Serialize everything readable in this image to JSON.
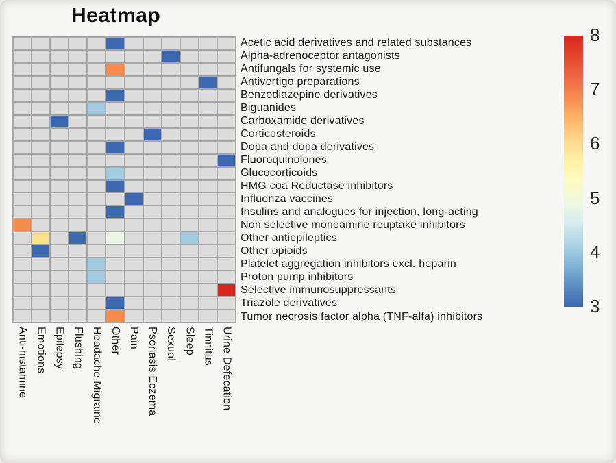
{
  "page": {
    "background": "#f6f6f4"
  },
  "chart_data": {
    "type": "heatmap",
    "title": "Heatmap",
    "rows": [
      "Acetic acid derivatives and related substances",
      "Alpha-adrenoceptor antagonists",
      "Antifungals for systemic use",
      "Antivertigo preparations",
      "Benzodiazepine derivatives",
      "Biguanides",
      "Carboxamide derivatives",
      "Corticosteroids",
      "Dopa and dopa derivatives",
      "Fluoroquinolones",
      "Glucocorticoids",
      "HMG coa Reductase inhibitors",
      "Influenza vaccines",
      "Insulins and analogues for injection, long-acting",
      "Non selective monoamine reuptake inhibitors",
      "Other antiepileptics",
      "Other opioids",
      "Platelet aggregation inhibitors excl. heparin",
      "Proton pump inhibitors",
      "Selective immunosuppressants",
      "Triazole derivatives",
      "Tumor necrosis factor alpha (TNF-alfa) inhibitors"
    ],
    "columns": [
      "Anti-histamine",
      "Emotions",
      "Epilepsy",
      "Flushing",
      "Headache Migraine",
      "Other",
      "Pain",
      "Psoriasis Eczema",
      "Sexual",
      "Sleep",
      "Tinnitus",
      "Urine Defecation"
    ],
    "cells": [
      {
        "row": "Acetic acid derivatives and related substances",
        "col": "Other",
        "value": 3
      },
      {
        "row": "Alpha-adrenoceptor antagonists",
        "col": "Sexual",
        "value": 3
      },
      {
        "row": "Antifungals for systemic use",
        "col": "Other",
        "value": 7
      },
      {
        "row": "Antivertigo preparations",
        "col": "Tinnitus",
        "value": 3
      },
      {
        "row": "Benzodiazepine derivatives",
        "col": "Other",
        "value": 3
      },
      {
        "row": "Biguanides",
        "col": "Headache Migraine",
        "value": 4
      },
      {
        "row": "Carboxamide derivatives",
        "col": "Epilepsy",
        "value": 3
      },
      {
        "row": "Corticosteroids",
        "col": "Psoriasis Eczema",
        "value": 3
      },
      {
        "row": "Dopa and dopa derivatives",
        "col": "Other",
        "value": 3
      },
      {
        "row": "Fluoroquinolones",
        "col": "Urine Defecation",
        "value": 3
      },
      {
        "row": "Glucocorticoids",
        "col": "Other",
        "value": 4
      },
      {
        "row": "HMG coa Reductase inhibitors",
        "col": "Other",
        "value": 3
      },
      {
        "row": "Influenza vaccines",
        "col": "Pain",
        "value": 3
      },
      {
        "row": "Insulins and analogues for injection, long-acting",
        "col": "Other",
        "value": 3
      },
      {
        "row": "Non selective monoamine reuptake inhibitors",
        "col": "Anti-histamine",
        "value": 7
      },
      {
        "row": "Other antiepileptics",
        "col": "Emotions",
        "value": 6
      },
      {
        "row": "Other antiepileptics",
        "col": "Flushing",
        "value": 3
      },
      {
        "row": "Other antiepileptics",
        "col": "Other",
        "value": 5
      },
      {
        "row": "Other antiepileptics",
        "col": "Sleep",
        "value": 4
      },
      {
        "row": "Other opioids",
        "col": "Emotions",
        "value": 3
      },
      {
        "row": "Platelet aggregation inhibitors excl. heparin",
        "col": "Headache Migraine",
        "value": 4
      },
      {
        "row": "Proton pump inhibitors",
        "col": "Headache Migraine",
        "value": 4
      },
      {
        "row": "Selective immunosuppressants",
        "col": "Urine Defecation",
        "value": 8
      },
      {
        "row": "Triazole derivatives",
        "col": "Other",
        "value": 3
      },
      {
        "row": "Tumor necrosis factor alpha (TNF-alfa) inhibitors",
        "col": "Other",
        "value": 7
      }
    ],
    "value_palette": {
      "3": "#3c68b0",
      "4": "#a3cbe2",
      "5": "#ebf5e4",
      "6": "#fbe288",
      "7": "#f68c4c",
      "8": "#d6271f"
    },
    "empty_cell_color": "#dcdcdc",
    "gridline_color": "#a6a6a6",
    "colorbar": {
      "min": 3,
      "max": 8,
      "ticks": [
        8,
        7,
        6,
        5,
        4,
        3
      ],
      "gradient_top_to_bottom": [
        "#d7261f",
        "#e4472e",
        "#f06744",
        "#f88d51",
        "#fdb567",
        "#fed88b",
        "#fef0a6",
        "#fdfbc2",
        "#eff8e2",
        "#d5ecf0",
        "#aed4e7",
        "#82b4d6",
        "#5b8ec3",
        "#3e67b0"
      ]
    },
    "legend_position": "right",
    "xlabel": "",
    "ylabel": ""
  }
}
